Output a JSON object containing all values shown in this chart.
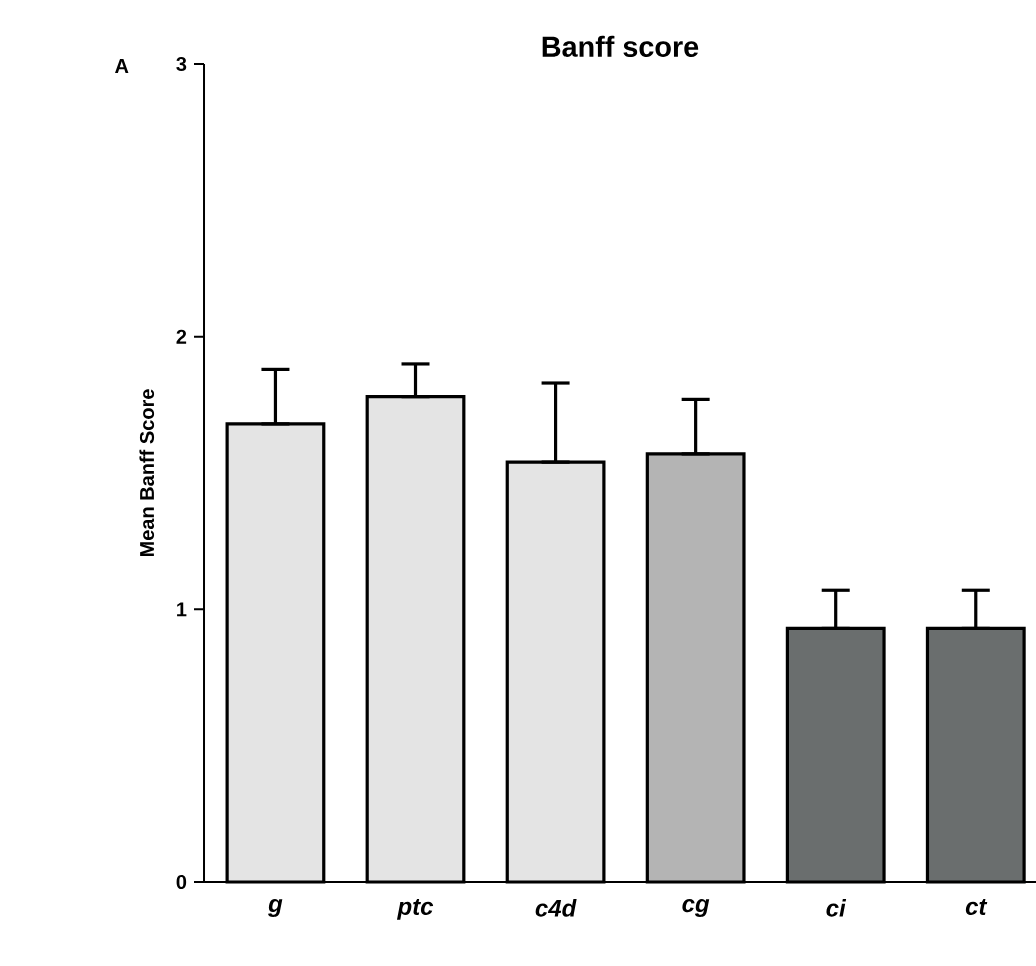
{
  "chart_data": {
    "type": "bar",
    "title": "Banff score",
    "ylabel": "Mean Banff Score",
    "annotations": [
      "A"
    ],
    "categories": [
      "g",
      "ptc",
      "c4d",
      "cg",
      "ci",
      "ct"
    ],
    "values": [
      1.68,
      1.78,
      1.54,
      1.57,
      0.93,
      0.93
    ],
    "errors": [
      [
        1.68,
        1.88
      ],
      [
        1.78,
        1.9
      ],
      [
        1.54,
        1.83
      ],
      [
        1.57,
        1.77
      ],
      [
        0.93,
        1.07
      ],
      [
        0.93,
        1.07
      ]
    ],
    "colors": [
      "#e4e4e4",
      "#e4e4e4",
      "#e4e4e4",
      "#b4b4b4",
      "#6a6e6e",
      "#6a6e6e"
    ],
    "ylim": [
      0,
      3
    ],
    "yticks": [
      0,
      1,
      2,
      3
    ],
    "grid": false
  }
}
